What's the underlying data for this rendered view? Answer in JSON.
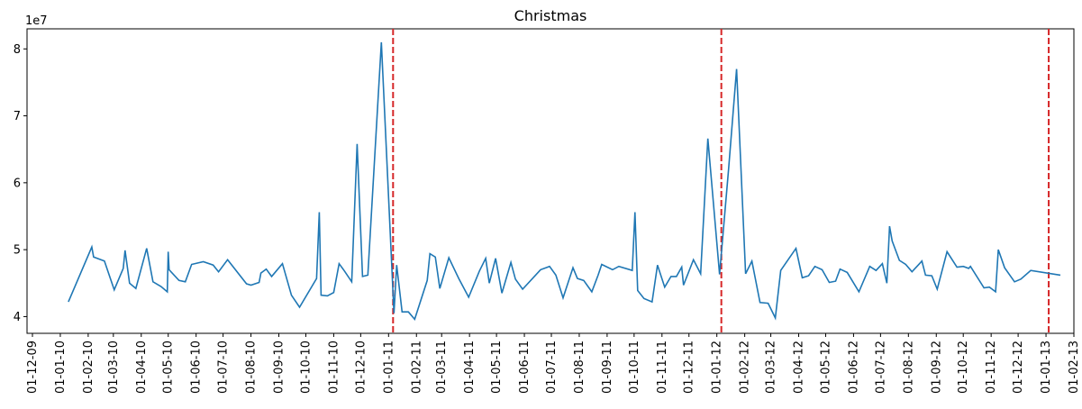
{
  "chart_data": {
    "type": "line",
    "title": "Christmas",
    "xlabel": "",
    "ylabel": "",
    "y_exponent_label": "1e7",
    "y_scale": 10000000,
    "ylim": [
      37500000,
      83000000
    ],
    "yticks": [
      {
        "value": 40000000,
        "label": "4"
      },
      {
        "value": 50000000,
        "label": "5"
      },
      {
        "value": 60000000,
        "label": "6"
      },
      {
        "value": 70000000,
        "label": "7"
      },
      {
        "value": 80000000,
        "label": "8"
      }
    ],
    "xlim": [
      "2009-11-25",
      "2013-02-01"
    ],
    "xticks": [
      {
        "date": "2009-12-01",
        "label": "01-12-09"
      },
      {
        "date": "2010-01-01",
        "label": "01-01-10"
      },
      {
        "date": "2010-02-01",
        "label": "01-02-10"
      },
      {
        "date": "2010-03-01",
        "label": "01-03-10"
      },
      {
        "date": "2010-04-01",
        "label": "01-04-10"
      },
      {
        "date": "2010-05-01",
        "label": "01-05-10"
      },
      {
        "date": "2010-06-01",
        "label": "01-06-10"
      },
      {
        "date": "2010-07-01",
        "label": "01-07-10"
      },
      {
        "date": "2010-08-01",
        "label": "01-08-10"
      },
      {
        "date": "2010-09-01",
        "label": "01-09-10"
      },
      {
        "date": "2010-10-01",
        "label": "01-10-10"
      },
      {
        "date": "2010-11-01",
        "label": "01-11-10"
      },
      {
        "date": "2010-12-01",
        "label": "01-12-10"
      },
      {
        "date": "2011-01-01",
        "label": "01-01-11"
      },
      {
        "date": "2011-02-01",
        "label": "01-02-11"
      },
      {
        "date": "2011-03-01",
        "label": "01-03-11"
      },
      {
        "date": "2011-04-01",
        "label": "01-04-11"
      },
      {
        "date": "2011-05-01",
        "label": "01-05-11"
      },
      {
        "date": "2011-06-01",
        "label": "01-06-11"
      },
      {
        "date": "2011-07-01",
        "label": "01-07-11"
      },
      {
        "date": "2011-08-01",
        "label": "01-08-11"
      },
      {
        "date": "2011-09-01",
        "label": "01-09-11"
      },
      {
        "date": "2011-10-01",
        "label": "01-10-11"
      },
      {
        "date": "2011-11-01",
        "label": "01-11-11"
      },
      {
        "date": "2011-12-01",
        "label": "01-12-11"
      },
      {
        "date": "2012-01-01",
        "label": "01-01-12"
      },
      {
        "date": "2012-02-01",
        "label": "01-02-12"
      },
      {
        "date": "2012-03-01",
        "label": "01-03-12"
      },
      {
        "date": "2012-04-01",
        "label": "01-04-12"
      },
      {
        "date": "2012-05-01",
        "label": "01-05-12"
      },
      {
        "date": "2012-06-01",
        "label": "01-06-12"
      },
      {
        "date": "2012-07-01",
        "label": "01-07-12"
      },
      {
        "date": "2012-08-01",
        "label": "01-08-12"
      },
      {
        "date": "2012-09-01",
        "label": "01-09-12"
      },
      {
        "date": "2012-10-01",
        "label": "01-10-12"
      },
      {
        "date": "2012-11-01",
        "label": "01-11-12"
      },
      {
        "date": "2012-12-01",
        "label": "01-12-12"
      },
      {
        "date": "2013-01-01",
        "label": "01-01-13"
      },
      {
        "date": "2013-02-01",
        "label": "01-02-13"
      }
    ],
    "series_color": "#1f77b4",
    "vline_color": "#d62728",
    "vlines": [
      "2011-01-06",
      "2012-01-06",
      "2013-01-04"
    ],
    "series": [
      {
        "name": "",
        "points": [
          {
            "x": "2010-01-10",
            "y": 42200000
          },
          {
            "x": "2010-02-05",
            "y": 50400000
          },
          {
            "x": "2010-02-07",
            "y": 48900000
          },
          {
            "x": "2010-02-19",
            "y": 48300000
          },
          {
            "x": "2010-03-02",
            "y": 44000000
          },
          {
            "x": "2010-03-12",
            "y": 47200000
          },
          {
            "x": "2010-03-14",
            "y": 49900000
          },
          {
            "x": "2010-03-19",
            "y": 45000000
          },
          {
            "x": "2010-03-26",
            "y": 44200000
          },
          {
            "x": "2010-04-07",
            "y": 50200000
          },
          {
            "x": "2010-04-14",
            "y": 45200000
          },
          {
            "x": "2010-04-23",
            "y": 44500000
          },
          {
            "x": "2010-04-30",
            "y": 43700000
          },
          {
            "x": "2010-05-01",
            "y": 49700000
          },
          {
            "x": "2010-05-02",
            "y": 47000000
          },
          {
            "x": "2010-05-13",
            "y": 45400000
          },
          {
            "x": "2010-05-20",
            "y": 45200000
          },
          {
            "x": "2010-05-27",
            "y": 47800000
          },
          {
            "x": "2010-06-09",
            "y": 48200000
          },
          {
            "x": "2010-06-20",
            "y": 47700000
          },
          {
            "x": "2010-06-26",
            "y": 46700000
          },
          {
            "x": "2010-07-06",
            "y": 48500000
          },
          {
            "x": "2010-07-27",
            "y": 44900000
          },
          {
            "x": "2010-08-01",
            "y": 44700000
          },
          {
            "x": "2010-08-10",
            "y": 45100000
          },
          {
            "x": "2010-08-12",
            "y": 46500000
          },
          {
            "x": "2010-08-18",
            "y": 47100000
          },
          {
            "x": "2010-08-24",
            "y": 46000000
          },
          {
            "x": "2010-09-05",
            "y": 47900000
          },
          {
            "x": "2010-09-15",
            "y": 43200000
          },
          {
            "x": "2010-09-24",
            "y": 41400000
          },
          {
            "x": "2010-10-13",
            "y": 45700000
          },
          {
            "x": "2010-10-16",
            "y": 55600000
          },
          {
            "x": "2010-10-18",
            "y": 43200000
          },
          {
            "x": "2010-10-25",
            "y": 43100000
          },
          {
            "x": "2010-11-01",
            "y": 43600000
          },
          {
            "x": "2010-11-07",
            "y": 47900000
          },
          {
            "x": "2010-11-13",
            "y": 46800000
          },
          {
            "x": "2010-11-21",
            "y": 45200000
          },
          {
            "x": "2010-11-27",
            "y": 65800000
          },
          {
            "x": "2010-12-03",
            "y": 46000000
          },
          {
            "x": "2010-12-09",
            "y": 46200000
          },
          {
            "x": "2010-12-24",
            "y": 81000000
          },
          {
            "x": "2011-01-07",
            "y": 40500000
          },
          {
            "x": "2011-01-10",
            "y": 47700000
          },
          {
            "x": "2011-01-16",
            "y": 40700000
          },
          {
            "x": "2011-01-23",
            "y": 40700000
          },
          {
            "x": "2011-01-30",
            "y": 39600000
          },
          {
            "x": "2011-02-13",
            "y": 45400000
          },
          {
            "x": "2011-02-16",
            "y": 49400000
          },
          {
            "x": "2011-02-22",
            "y": 48900000
          },
          {
            "x": "2011-02-27",
            "y": 44200000
          },
          {
            "x": "2011-03-09",
            "y": 48800000
          },
          {
            "x": "2011-03-20",
            "y": 45700000
          },
          {
            "x": "2011-03-31",
            "y": 42900000
          },
          {
            "x": "2011-04-12",
            "y": 46800000
          },
          {
            "x": "2011-04-19",
            "y": 48700000
          },
          {
            "x": "2011-04-23",
            "y": 45000000
          },
          {
            "x": "2011-04-30",
            "y": 48700000
          },
          {
            "x": "2011-05-07",
            "y": 43500000
          },
          {
            "x": "2011-05-17",
            "y": 48100000
          },
          {
            "x": "2011-05-22",
            "y": 45600000
          },
          {
            "x": "2011-05-30",
            "y": 44100000
          },
          {
            "x": "2011-06-19",
            "y": 47000000
          },
          {
            "x": "2011-06-29",
            "y": 47500000
          },
          {
            "x": "2011-07-06",
            "y": 46200000
          },
          {
            "x": "2011-07-14",
            "y": 42800000
          },
          {
            "x": "2011-07-25",
            "y": 47300000
          },
          {
            "x": "2011-07-30",
            "y": 45700000
          },
          {
            "x": "2011-08-06",
            "y": 45400000
          },
          {
            "x": "2011-08-15",
            "y": 43700000
          },
          {
            "x": "2011-08-22",
            "y": 46200000
          },
          {
            "x": "2011-08-26",
            "y": 47800000
          },
          {
            "x": "2011-09-07",
            "y": 47000000
          },
          {
            "x": "2011-09-14",
            "y": 47500000
          },
          {
            "x": "2011-09-29",
            "y": 46900000
          },
          {
            "x": "2011-10-02",
            "y": 55600000
          },
          {
            "x": "2011-10-05",
            "y": 43900000
          },
          {
            "x": "2011-10-12",
            "y": 42700000
          },
          {
            "x": "2011-10-21",
            "y": 42200000
          },
          {
            "x": "2011-10-27",
            "y": 47700000
          },
          {
            "x": "2011-11-04",
            "y": 44400000
          },
          {
            "x": "2011-11-11",
            "y": 46000000
          },
          {
            "x": "2011-11-17",
            "y": 46000000
          },
          {
            "x": "2011-11-23",
            "y": 47400000
          },
          {
            "x": "2011-11-25",
            "y": 44700000
          },
          {
            "x": "2011-12-06",
            "y": 48500000
          },
          {
            "x": "2011-12-14",
            "y": 46400000
          },
          {
            "x": "2011-12-22",
            "y": 66600000
          },
          {
            "x": "2012-01-04",
            "y": 46300000
          },
          {
            "x": "2012-01-14",
            "y": 62000000
          },
          {
            "x": "2012-01-23",
            "y": 77000000
          },
          {
            "x": "2012-02-02",
            "y": 46400000
          },
          {
            "x": "2012-02-09",
            "y": 48300000
          },
          {
            "x": "2012-02-18",
            "y": 42100000
          },
          {
            "x": "2012-02-27",
            "y": 42000000
          },
          {
            "x": "2012-03-06",
            "y": 39800000
          },
          {
            "x": "2012-03-12",
            "y": 46900000
          },
          {
            "x": "2012-03-29",
            "y": 50200000
          },
          {
            "x": "2012-04-05",
            "y": 45800000
          },
          {
            "x": "2012-04-12",
            "y": 46100000
          },
          {
            "x": "2012-04-19",
            "y": 47500000
          },
          {
            "x": "2012-04-27",
            "y": 47000000
          },
          {
            "x": "2012-05-05",
            "y": 45100000
          },
          {
            "x": "2012-05-12",
            "y": 45300000
          },
          {
            "x": "2012-05-17",
            "y": 47100000
          },
          {
            "x": "2012-05-25",
            "y": 46600000
          },
          {
            "x": "2012-06-07",
            "y": 43700000
          },
          {
            "x": "2012-06-19",
            "y": 47500000
          },
          {
            "x": "2012-06-26",
            "y": 46900000
          },
          {
            "x": "2012-07-03",
            "y": 47900000
          },
          {
            "x": "2012-07-08",
            "y": 45000000
          },
          {
            "x": "2012-07-11",
            "y": 53500000
          },
          {
            "x": "2012-07-14",
            "y": 51300000
          },
          {
            "x": "2012-07-22",
            "y": 48400000
          },
          {
            "x": "2012-07-29",
            "y": 47800000
          },
          {
            "x": "2012-08-05",
            "y": 46700000
          },
          {
            "x": "2012-08-16",
            "y": 48300000
          },
          {
            "x": "2012-08-20",
            "y": 46200000
          },
          {
            "x": "2012-08-27",
            "y": 46100000
          },
          {
            "x": "2012-09-02",
            "y": 44100000
          },
          {
            "x": "2012-09-13",
            "y": 49700000
          },
          {
            "x": "2012-09-24",
            "y": 47400000
          },
          {
            "x": "2012-10-01",
            "y": 47500000
          },
          {
            "x": "2012-10-07",
            "y": 47200000
          },
          {
            "x": "2012-10-09",
            "y": 47500000
          },
          {
            "x": "2012-10-24",
            "y": 44300000
          },
          {
            "x": "2012-10-30",
            "y": 44400000
          },
          {
            "x": "2012-11-06",
            "y": 43700000
          },
          {
            "x": "2012-11-09",
            "y": 50000000
          },
          {
            "x": "2012-11-16",
            "y": 47300000
          },
          {
            "x": "2012-11-27",
            "y": 45200000
          },
          {
            "x": "2012-12-04",
            "y": 45600000
          },
          {
            "x": "2012-12-15",
            "y": 46900000
          },
          {
            "x": "2013-01-17",
            "y": 46200000
          }
        ]
      }
    ]
  }
}
